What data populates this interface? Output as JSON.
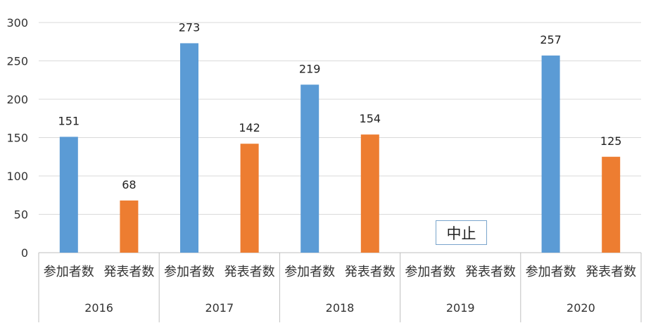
{
  "chart_data": {
    "type": "bar",
    "title": "",
    "xlabel": "",
    "ylabel": "",
    "ylim": [
      0,
      300
    ],
    "yticks": [
      0,
      50,
      100,
      150,
      200,
      250,
      300
    ],
    "grid": true,
    "groups": [
      {
        "year": "2016",
        "categories": [
          "参加者数",
          "発表者数"
        ],
        "values": [
          151,
          68
        ]
      },
      {
        "year": "2017",
        "categories": [
          "参加者数",
          "発表者数"
        ],
        "values": [
          273,
          142
        ]
      },
      {
        "year": "2018",
        "categories": [
          "参加者数",
          "発表者数"
        ],
        "values": [
          219,
          154
        ]
      },
      {
        "year": "2019",
        "categories": [
          "参加者数",
          "発表者数"
        ],
        "values": [
          null,
          null
        ],
        "note": "中止"
      },
      {
        "year": "2020",
        "categories": [
          "参加者数",
          "発表者数"
        ],
        "values": [
          257,
          125
        ]
      }
    ],
    "colors": {
      "参加者数": "#5b9bd5",
      "発表者数": "#ed7d31"
    }
  }
}
